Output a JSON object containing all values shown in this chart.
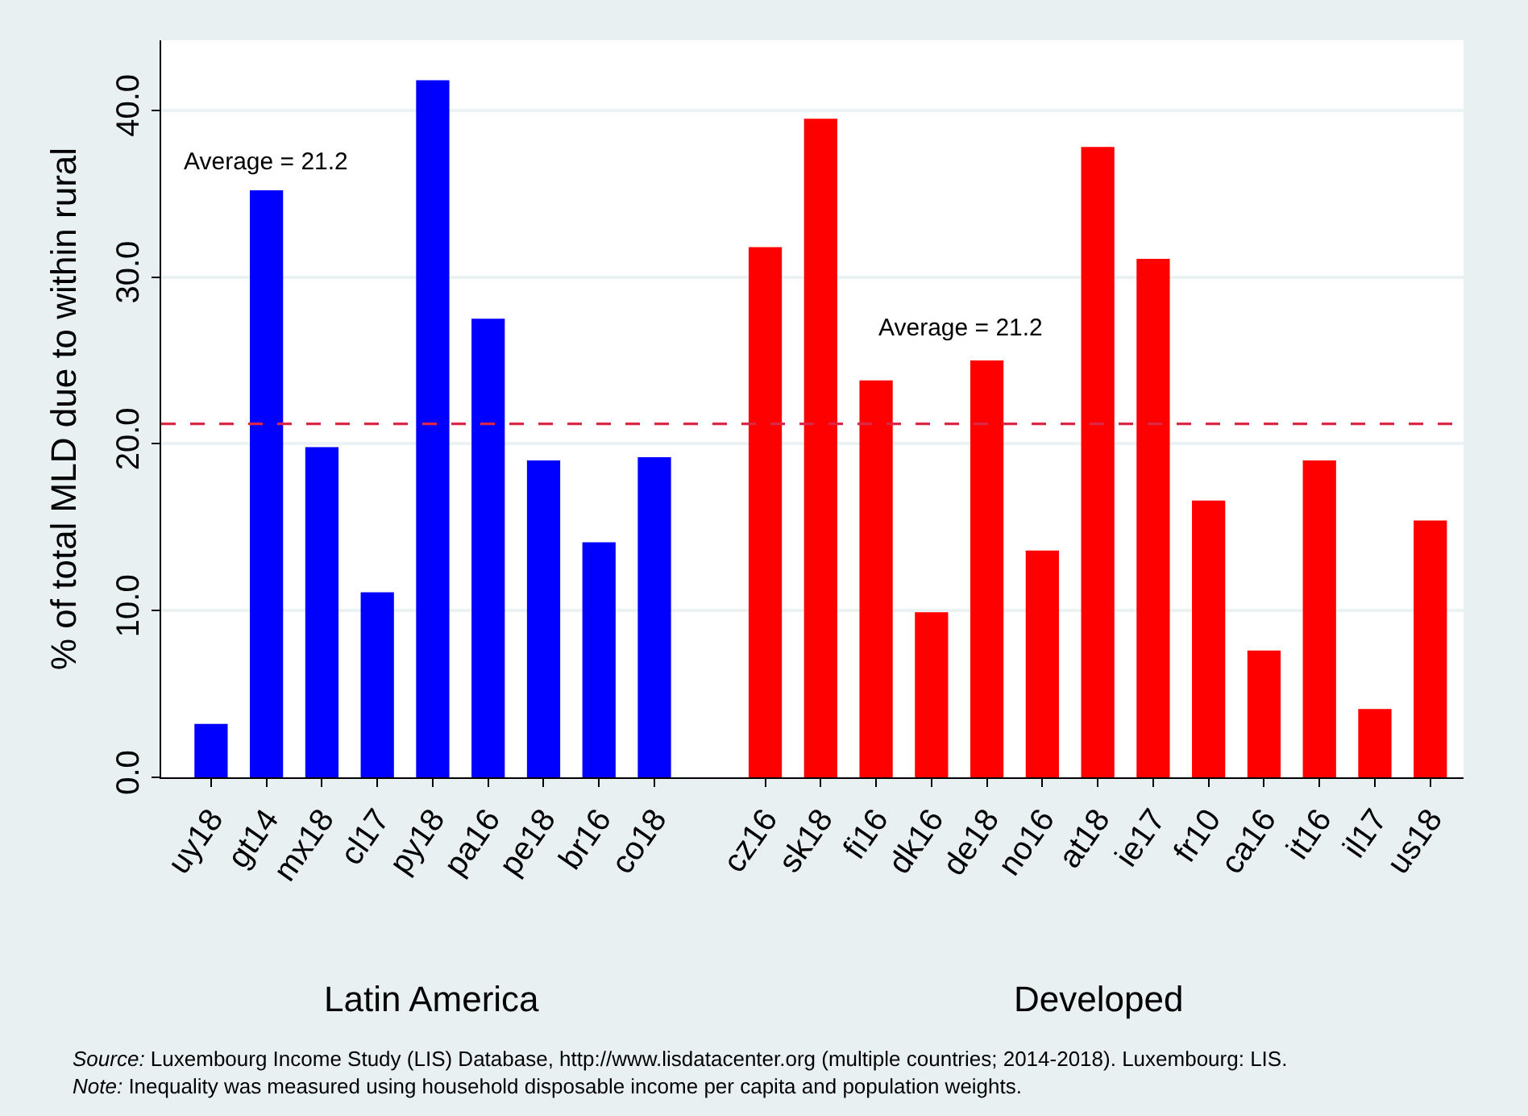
{
  "chart_data": {
    "type": "bar",
    "ylabel": "% of total MLD due to within rural",
    "categories": [
      "uy18",
      "gt14",
      "mx18",
      "cl17",
      "py18",
      "pa16",
      "pe18",
      "br16",
      "co18",
      null,
      "cz16",
      "sk18",
      "fi16",
      "dk16",
      "de18",
      "no16",
      "at18",
      "ie17",
      "fr10",
      "ca16",
      "it16",
      "il17",
      "us18"
    ],
    "series": [
      {
        "color": "#0000ff",
        "values": [
          3.2,
          35.2,
          19.8,
          11.1,
          41.8,
          27.5,
          19.0,
          14.1,
          19.2,
          null,
          null,
          null,
          null,
          null,
          null,
          null,
          null,
          null,
          null,
          null,
          null,
          null,
          null
        ]
      },
      {
        "color": "#ff0000",
        "values": [
          null,
          null,
          null,
          null,
          null,
          null,
          null,
          null,
          null,
          null,
          31.8,
          39.5,
          23.8,
          9.9,
          25.0,
          13.6,
          37.8,
          31.1,
          16.6,
          7.6,
          19.0,
          4.1,
          15.4
        ]
      }
    ],
    "ylim": [
      0,
      44.2
    ],
    "yticks": [
      {
        "value": 0,
        "label": "0.0"
      },
      {
        "value": 10,
        "label": "10.0"
      },
      {
        "value": 20,
        "label": "20.0"
      },
      {
        "value": 30,
        "label": "30.0"
      },
      {
        "value": 40,
        "label": "40.0"
      }
    ],
    "grid": "y",
    "legend": false,
    "ref_lines": [
      {
        "axis": "y",
        "value": 21.2,
        "color": "#dc2847",
        "line_style": "dashed"
      }
    ],
    "annotations": [
      "Average = 21.2",
      "Average = 21.2",
      "Latin America",
      "Developed",
      "Source: Luxembourg Income Study (LIS) Database, http://www.lisdatacenter.org (multiple countries; 2014-2018). Luxembourg: LIS.",
      "Note: Inequality was measured using household disposable income per capita and population weights."
    ]
  }
}
